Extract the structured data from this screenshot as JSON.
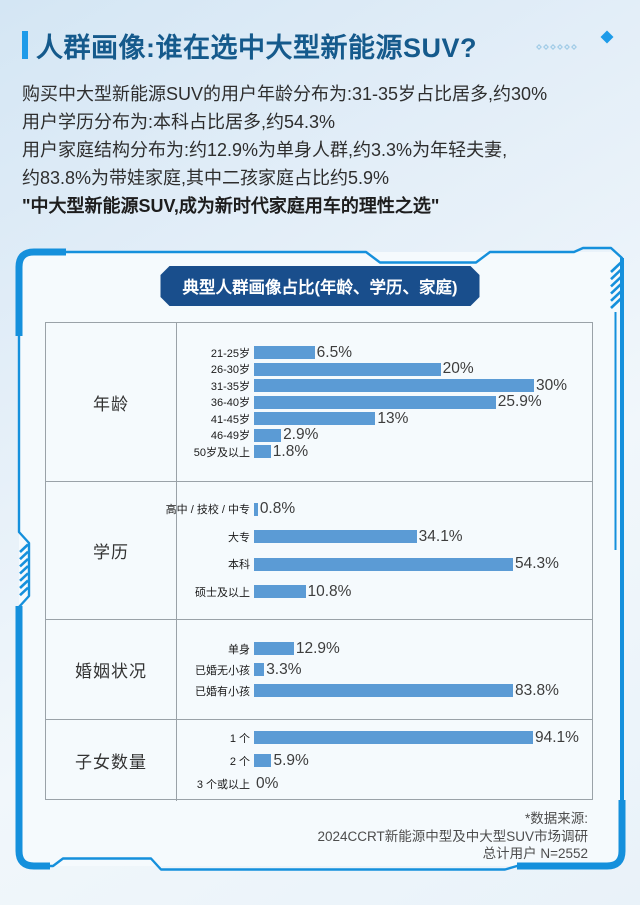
{
  "header": {
    "title": "人群画像:谁在选中大型新能源SUV?"
  },
  "intro": {
    "lines": [
      "购买中大型新能源SUV的用户年龄分布为:31-35岁占比居多,约30%",
      "用户学历分布为:本科占比居多,约54.3%",
      "用户家庭结构分布为:约12.9%为单身人群,约3.3%为年轻夫妻,",
      "约83.8%为带娃家庭,其中二孩家庭占比约5.9%"
    ],
    "quote": "\"中大型新能源SUV,成为新时代家庭用车的理性之选\""
  },
  "card": {
    "chart_title": "典型人群画像占比(年龄、学历、家庭)",
    "source": {
      "lines": [
        "*数据来源:",
        "2024CCRT新能源中型及中大型SUV市场调研",
        "总计用户 N=2552"
      ]
    }
  },
  "chart_data": {
    "type": "bar",
    "orientation": "horizontal",
    "title": "典型人群画像占比(年龄、学历、家庭)",
    "unit": "%",
    "bar_color": "#5B9BD5",
    "layout_note": "four stacked sections, each section's bars scaled to its own max value",
    "sections": [
      {
        "category": "年龄",
        "items": [
          {
            "label": "21-25岁",
            "value": 6.5,
            "display": "6.5%"
          },
          {
            "label": "26-30岁",
            "value": 20,
            "display": "20%"
          },
          {
            "label": "31-35岁",
            "value": 30,
            "display": "30%"
          },
          {
            "label": "36-40岁",
            "value": 25.9,
            "display": "25.9%"
          },
          {
            "label": "41-45岁",
            "value": 13,
            "display": "13%"
          },
          {
            "label": "46-49岁",
            "value": 2.9,
            "display": "2.9%"
          },
          {
            "label": "50岁及以上",
            "value": 1.8,
            "display": "1.8%"
          }
        ]
      },
      {
        "category": "学历",
        "items": [
          {
            "label": "高中 / 技校 / 中专",
            "value": 0.8,
            "display": "0.8%"
          },
          {
            "label": "大专",
            "value": 34.1,
            "display": "34.1%"
          },
          {
            "label": "本科",
            "value": 54.3,
            "display": "54.3%"
          },
          {
            "label": "硕士及以上",
            "value": 10.8,
            "display": "10.8%"
          }
        ]
      },
      {
        "category": "婚姻状况",
        "items": [
          {
            "label": "单身",
            "value": 12.9,
            "display": "12.9%"
          },
          {
            "label": "已婚无小孩",
            "value": 3.3,
            "display": "3.3%"
          },
          {
            "label": "已婚有小孩",
            "value": 83.8,
            "display": "83.8%"
          }
        ]
      },
      {
        "category": "子女数量",
        "items": [
          {
            "label": "1 个",
            "value": 94.1,
            "display": "94.1%"
          },
          {
            "label": "2 个",
            "value": 5.9,
            "display": "5.9%"
          },
          {
            "label": "3 个或以上",
            "value": 0,
            "display": "0%"
          }
        ]
      }
    ]
  },
  "colors": {
    "accent_blue": "#1E9BE9",
    "title_blue": "#155A8C",
    "frame_blue": "#1590DC",
    "pill_navy": "#194E8C",
    "bar_blue": "#5B9BD5",
    "table_border_gray": "#9aa2a8"
  }
}
